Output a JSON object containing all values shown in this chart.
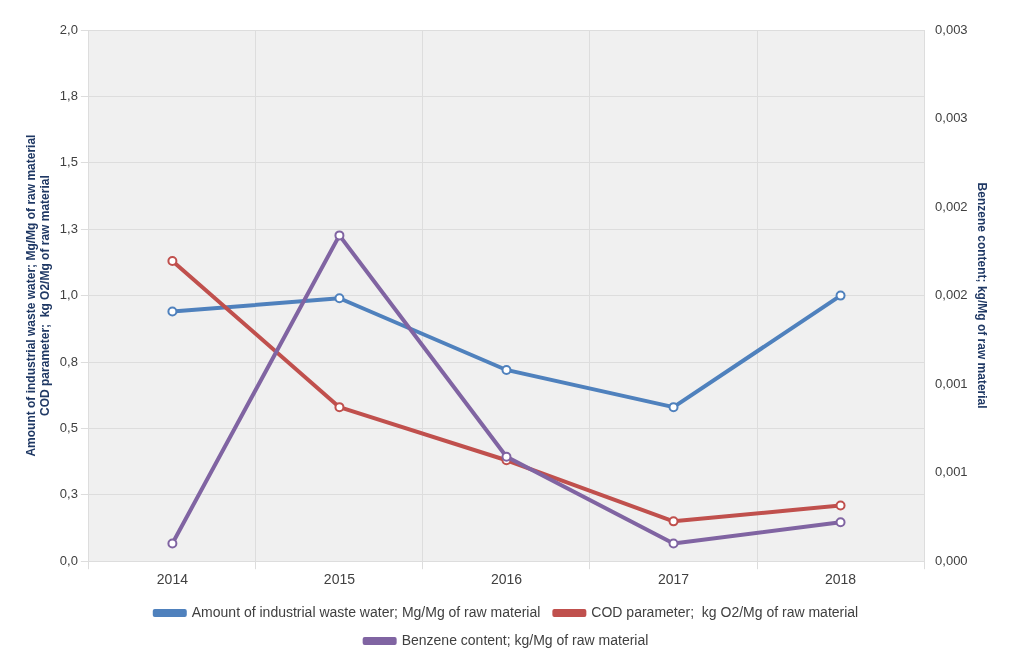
{
  "chart_data": {
    "type": "line",
    "categories": [
      "2014",
      "2015",
      "2016",
      "2017",
      "2018"
    ],
    "ylabel": "Amount of industrial waste water; Mg/Mg of raw material\nCOD parameter;  kg O2/Mg of raw material",
    "y2label": "Benzene content; kg/Mg of raw material",
    "series": [
      {
        "name": "Amount of industrial waste water; Mg/Mg of raw material",
        "color": "#4f81bd",
        "values": [
          0.94,
          0.99,
          0.72,
          0.58,
          1.0
        ]
      },
      {
        "name": "COD parameter;  kg O2/Mg of raw material",
        "color": "#c0504d",
        "values": [
          1.13,
          0.58,
          0.38,
          0.15,
          0.21
        ]
      },
      {
        "name": "Benzene content; kg/Mg of raw material",
        "color": "#8064a2",
        "axis": "y2",
        "values": [
          0.0001,
          0.00184,
          0.00059,
          0.0001,
          0.00022
        ]
      }
    ],
    "ylim": [
      0,
      2
    ],
    "yticks": [
      {
        "value": 0,
        "label": "0,0"
      },
      {
        "value": 0.25,
        "label": "0,3"
      },
      {
        "value": 0.5,
        "label": "0,5"
      },
      {
        "value": 0.75,
        "label": "0,8"
      },
      {
        "value": 1,
        "label": "1,0"
      },
      {
        "value": 1.25,
        "label": "1,3"
      },
      {
        "value": 1.5,
        "label": "1,5"
      },
      {
        "value": 1.75,
        "label": "1,8"
      },
      {
        "value": 2,
        "label": "2,0"
      }
    ],
    "y2lim": [
      0,
      0.003
    ],
    "y2ticks": [
      {
        "value": 0,
        "label": "0,000"
      },
      {
        "value": 0.0005,
        "label": "0,001"
      },
      {
        "value": 0.001,
        "label": "0,001"
      },
      {
        "value": 0.0015,
        "label": "0,002"
      },
      {
        "value": 0.002,
        "label": "0,002"
      },
      {
        "value": 0.0025,
        "label": "0,003"
      },
      {
        "value": 0.003,
        "label": "0,003"
      }
    ],
    "grid": true,
    "legend": "bottom",
    "marker": "circle",
    "line_style": "solid"
  }
}
